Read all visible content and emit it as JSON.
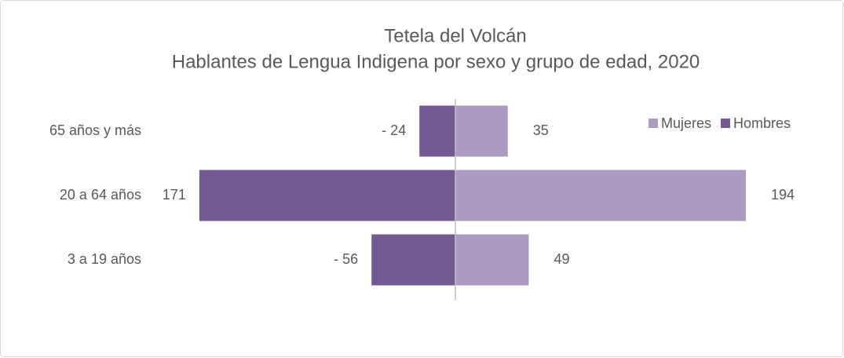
{
  "chart_data": {
    "type": "bar",
    "orientation": "horizontal",
    "title": "Tetela del Volcán",
    "subtitle": "Hablantes de Lengua Indigena por sexo y grupo de edad, 2020",
    "categories": [
      "65 años y más",
      "20 a 64 años",
      "3 a 19 años"
    ],
    "series": [
      {
        "name": "Mujeres",
        "color": "#a99bc1",
        "values": [
          35,
          194,
          49
        ]
      },
      {
        "name": "Hombres",
        "color": "#735a92",
        "values": [
          -24,
          -171,
          -56
        ],
        "value_labels": [
          "- 24",
          "171",
          "- 56"
        ]
      }
    ],
    "legend": "top-right"
  }
}
